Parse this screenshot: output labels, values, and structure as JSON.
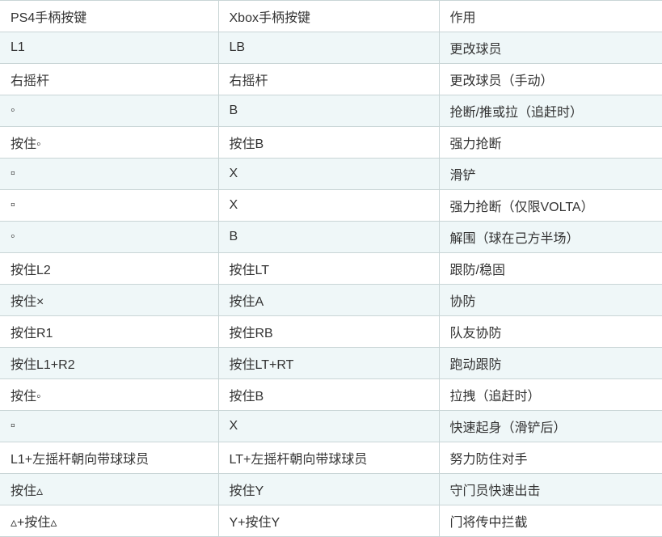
{
  "table": {
    "headers": [
      {
        "label": "PS4手柄按键"
      },
      {
        "label": "Xbox手柄按键"
      },
      {
        "label": "作用"
      }
    ],
    "rows": [
      [
        "L1",
        "LB",
        "更改球员"
      ],
      [
        "右摇杆",
        "右摇杆",
        "更改球员（手动）"
      ],
      [
        "◦",
        "B",
        "抢断/推或拉（追赶时）"
      ],
      [
        "按住◦",
        "按住B",
        "强力抢断"
      ],
      [
        "▫",
        "X",
        "滑铲"
      ],
      [
        "▫",
        "X",
        "强力抢断（仅限VOLTA）"
      ],
      [
        "◦",
        "B",
        "解围（球在己方半场）"
      ],
      [
        "按住L2",
        "按住LT",
        "跟防/稳固"
      ],
      [
        "按住×",
        "按住A",
        "协防"
      ],
      [
        "按住R1",
        "按住RB",
        "队友协防"
      ],
      [
        "按住L1+R2",
        "按住LT+RT",
        "跑动跟防"
      ],
      [
        "按住◦",
        "按住B",
        "拉拽（追赶时）"
      ],
      [
        "▫",
        "X",
        "快速起身（滑铲后）"
      ],
      [
        "L1+左摇杆朝向带球球员",
        "LT+左摇杆朝向带球球员",
        "努力防住对手"
      ],
      [
        "按住▵",
        "按住Y",
        "守门员快速出击"
      ],
      [
        "▵+按住▵",
        "Y+按住Y",
        "门将传中拦截"
      ]
    ]
  },
  "colors": {
    "stripe_row_background": "#eff7f8",
    "border": "#c9d5d6",
    "text": "#333333"
  }
}
